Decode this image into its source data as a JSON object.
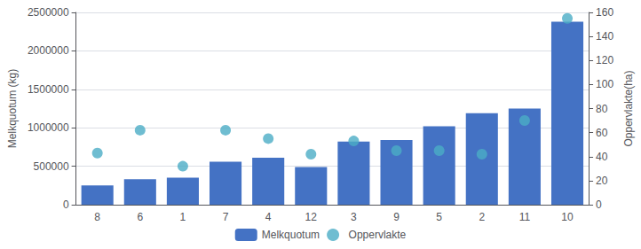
{
  "chart_data": {
    "type": "bar",
    "categories": [
      "8",
      "6",
      "1",
      "7",
      "4",
      "12",
      "3",
      "9",
      "5",
      "2",
      "11",
      "10"
    ],
    "series": [
      {
        "name": "Melkquotum",
        "type": "bar",
        "color": "#4472C4",
        "values": [
          250000,
          330000,
          350000,
          560000,
          610000,
          490000,
          820000,
          840000,
          1020000,
          1190000,
          1250000,
          2380000
        ]
      },
      {
        "name": "Oppervlakte",
        "type": "scatter",
        "color": "#4BACC6",
        "axis": "y2",
        "values": [
          43,
          62,
          32,
          62,
          55,
          42,
          53,
          45,
          45,
          42,
          70,
          155
        ]
      }
    ],
    "ylabel": "Melkquotum (kg)",
    "y2label": "Oppervlakte(ha)",
    "ylim": [
      0,
      2500000
    ],
    "yticks": [
      0,
      500000,
      1000000,
      1500000,
      2000000,
      2500000
    ],
    "y2lim": [
      0,
      160
    ],
    "y2ticks": [
      0,
      20,
      40,
      60,
      80,
      100,
      120,
      140,
      160
    ],
    "grid": true,
    "legend": "bottom"
  }
}
